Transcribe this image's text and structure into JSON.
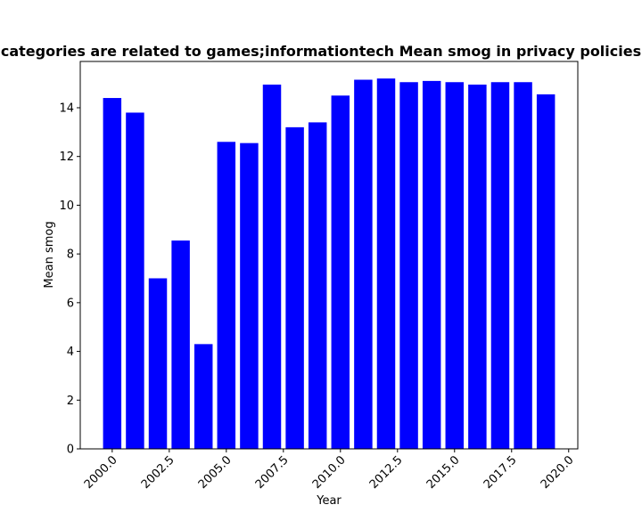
{
  "chart_data": {
    "type": "bar",
    "title": "categories are related to games;informationtech Mean smog in privacy policies",
    "xlabel": "Year",
    "ylabel": "Mean smog",
    "x": [
      2000,
      2001,
      2002,
      2003,
      2004,
      2005,
      2006,
      2007,
      2008,
      2009,
      2010,
      2011,
      2012,
      2013,
      2014,
      2015,
      2016,
      2017,
      2018,
      2019
    ],
    "values": [
      14.4,
      13.8,
      7.0,
      8.55,
      4.3,
      12.6,
      12.55,
      14.95,
      13.2,
      13.4,
      14.5,
      15.15,
      15.2,
      15.05,
      15.1,
      15.05,
      14.95,
      15.05,
      15.05,
      14.55
    ],
    "xlim": [
      1998.6,
      2020.4
    ],
    "ylim": [
      0,
      15.9
    ],
    "xticks": [
      2000.0,
      2002.5,
      2005.0,
      2007.5,
      2010.0,
      2012.5,
      2015.0,
      2017.5,
      2020.0
    ],
    "xtick_labels": [
      "2000.0",
      "2002.5",
      "2005.0",
      "2007.5",
      "2010.0",
      "2012.5",
      "2015.0",
      "2017.5",
      "2020.0"
    ],
    "yticks": [
      0,
      2,
      4,
      6,
      8,
      10,
      12,
      14
    ],
    "ytick_labels": [
      "0",
      "2",
      "4",
      "6",
      "8",
      "10",
      "12",
      "14"
    ],
    "bar_color": "#0000ff",
    "grid": false
  }
}
